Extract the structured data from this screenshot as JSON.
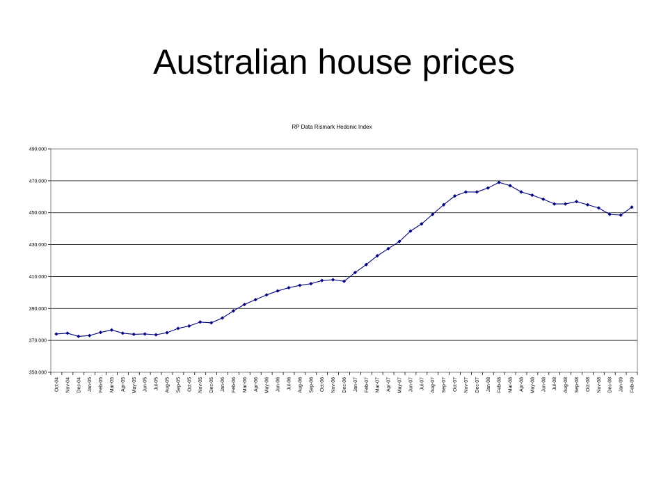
{
  "slide": {
    "title": "Australian house prices"
  },
  "chart_data": {
    "type": "line",
    "title": "RP Data Rismark Hedonic Index",
    "xlabel": "",
    "ylabel": "",
    "ylim": [
      350000,
      490000
    ],
    "y_ticks": [
      350000,
      370000,
      390000,
      410000,
      430000,
      450000,
      470000,
      490000
    ],
    "y_tick_labels": [
      "350.000",
      "370.000",
      "390.000",
      "410.000",
      "430.000",
      "450.000",
      "470.000",
      "490.000"
    ],
    "grid": "horizontal",
    "color": "#000080",
    "categories": [
      "Oct-04",
      "Nov-04",
      "Dec-04",
      "Jan-05",
      "Feb-05",
      "Mar-05",
      "Apr-05",
      "May-05",
      "Jun-05",
      "Jul-05",
      "Aug-05",
      "Sep-05",
      "Oct-05",
      "Nov-05",
      "Dec-05",
      "Jan-06",
      "Feb-06",
      "Mar-06",
      "Apr-06",
      "May-06",
      "Jun-06",
      "Jul-06",
      "Aug-06",
      "Sep-06",
      "Oct-06",
      "Nov-06",
      "Dec-06",
      "Jan-07",
      "Feb-07",
      "Mar-07",
      "Apr-07",
      "May-07",
      "Jun-07",
      "Jul-07",
      "Aug-07",
      "Sep-07",
      "Oct-07",
      "Nov-07",
      "Dec-07",
      "Jan-08",
      "Feb-08",
      "Mar-08",
      "Apr-08",
      "May-08",
      "Jun-08",
      "Jul-08",
      "Aug-08",
      "Sep-08",
      "Oct-08",
      "Nov-08",
      "Dec-08",
      "Jan-09",
      "Feb-09"
    ],
    "series": [
      {
        "values": [
          374000,
          374500,
          372500,
          373000,
          375000,
          376500,
          374500,
          373800,
          374000,
          373500,
          374800,
          377500,
          379000,
          381500,
          381000,
          384000,
          388500,
          392500,
          395500,
          398500,
          401000,
          403000,
          404500,
          405500,
          407500,
          408000,
          407000,
          412500,
          417500,
          423000,
          427500,
          432000,
          438500,
          443000,
          449000,
          455000,
          460500,
          463000,
          463000,
          465500,
          469000,
          467000,
          463000,
          461000,
          458500,
          455500,
          455500,
          457000,
          455000,
          453000,
          449000,
          448500,
          453500
        ]
      }
    ]
  }
}
